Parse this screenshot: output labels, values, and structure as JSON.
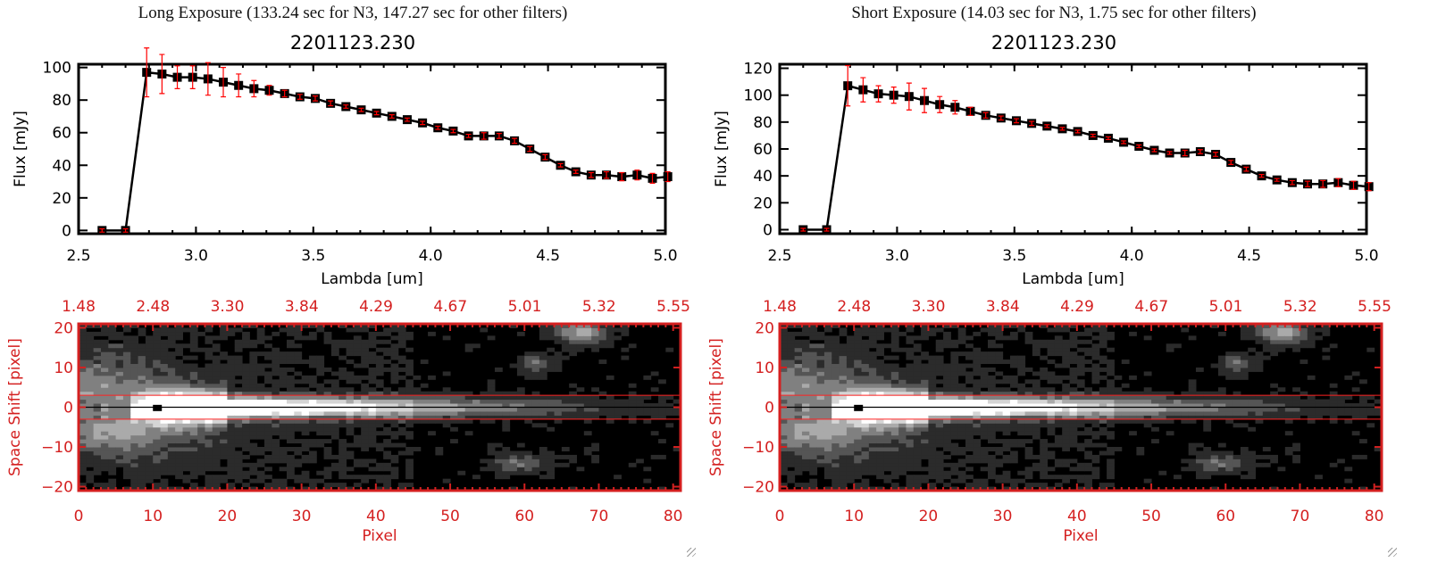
{
  "colors": {
    "axis_red": "#d42020",
    "err": "#ff0000",
    "line": "#000000"
  },
  "chart_data": [
    {
      "type": "line",
      "panel_title": "Long Exposure (133.24 sec for N3, 147.27 sec for other filters)",
      "title": "2201123.230",
      "xlabel": "Lambda [um]",
      "ylabel": "Flux [mJy]",
      "xlim": [
        2.5,
        5.0
      ],
      "ylim": [
        -2,
        102
      ],
      "xticks": [
        "2.5",
        "3.0",
        "3.5",
        "4.0",
        "4.5",
        "5.0"
      ],
      "yticks": [
        "0",
        "20",
        "40",
        "60",
        "80",
        "100"
      ],
      "ytick_vals": [
        0,
        20,
        40,
        60,
        80,
        100
      ],
      "flux": [
        0,
        0,
        97,
        96,
        94,
        94,
        93,
        91,
        89,
        87,
        86,
        84,
        82,
        81,
        78,
        76,
        74,
        72,
        70,
        68,
        66,
        63,
        61,
        58,
        58,
        58,
        55,
        50,
        45,
        40,
        36,
        34,
        34,
        33,
        34,
        32,
        33
      ],
      "err": [
        1,
        1,
        15,
        12,
        7,
        7,
        10,
        9,
        7,
        5,
        3,
        2,
        1.5,
        1.5,
        1.5,
        1,
        1,
        1,
        1,
        1,
        1,
        1,
        1,
        1,
        2,
        1.5,
        1.5,
        1.5,
        1.5,
        1,
        1,
        1.5,
        2,
        2.5,
        3,
        3,
        3
      ],
      "image": {
        "top_axis_labels": [
          "1.48",
          "2.48",
          "3.30",
          "3.84",
          "4.29",
          "4.67",
          "5.01",
          "5.32",
          "5.55"
        ],
        "xlabel": "Pixel",
        "ylabel": "Space Shift [pixel]",
        "xticks": [
          "0",
          "10",
          "20",
          "30",
          "40",
          "50",
          "60",
          "70",
          "80"
        ],
        "yticks": [
          "20",
          "10",
          "0",
          "-10",
          "-20"
        ],
        "aperture": [
          -3,
          3
        ],
        "peak_pixel": 10.5
      }
    },
    {
      "type": "line",
      "panel_title": "Short Exposure (14.03 sec for N3, 1.75 sec for other filters)",
      "title": "2201123.230",
      "xlabel": "Lambda [um]",
      "ylabel": "Flux [mJy]",
      "xlim": [
        2.5,
        5.0
      ],
      "ylim": [
        -3,
        123
      ],
      "xticks": [
        "2.5",
        "3.0",
        "3.5",
        "4.0",
        "4.5",
        "5.0"
      ],
      "yticks": [
        "0",
        "20",
        "40",
        "60",
        "80",
        "100",
        "120"
      ],
      "ytick_vals": [
        0,
        20,
        40,
        60,
        80,
        100,
        120
      ],
      "flux": [
        0,
        0,
        107,
        104,
        101,
        100,
        99,
        96,
        93,
        91,
        88,
        85,
        83,
        81,
        79,
        77,
        75,
        73,
        70,
        68,
        65,
        62,
        59,
        57,
        57,
        58,
        56,
        50,
        45,
        40,
        37,
        35,
        34,
        34,
        35,
        33,
        32
      ],
      "err": [
        1,
        1,
        15,
        9,
        6,
        6,
        10,
        9,
        6,
        5,
        3,
        2,
        1.5,
        1.5,
        1.5,
        1,
        1,
        1,
        1,
        1,
        1,
        1,
        1,
        1,
        2,
        1.5,
        1.5,
        1.5,
        1.5,
        1,
        1,
        1.5,
        2,
        2.5,
        3,
        3,
        3
      ],
      "image": {
        "top_axis_labels": [
          "1.48",
          "2.48",
          "3.30",
          "3.84",
          "4.29",
          "4.67",
          "5.01",
          "5.32",
          "5.55"
        ],
        "xlabel": "Pixel",
        "ylabel": "Space Shift [pixel]",
        "xticks": [
          "0",
          "10",
          "20",
          "30",
          "40",
          "50",
          "60",
          "70",
          "80"
        ],
        "yticks": [
          "20",
          "10",
          "0",
          "-10",
          "-20"
        ],
        "aperture": [
          -3,
          3
        ],
        "peak_pixel": 10.5
      }
    }
  ]
}
